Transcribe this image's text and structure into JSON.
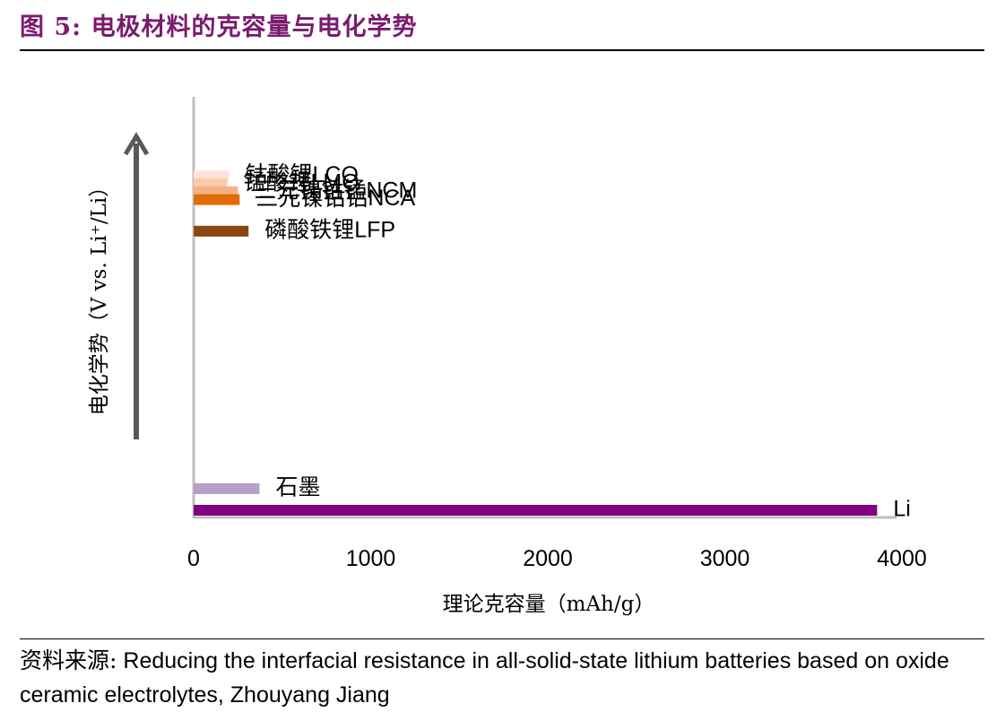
{
  "figure": {
    "title_prefix": "图 5:",
    "title": "电极材料的克容量与电化学势"
  },
  "source": {
    "label": "资料来源:",
    "text": "Reducing the interfacial resistance in all-solid-state lithium batteries based on oxide ceramic electrolytes, Zhouyang Jiang"
  },
  "chart_data": {
    "type": "bar",
    "orientation": "horizontal",
    "xlabel": "理论克容量（mAh/g）",
    "ylabel": "电化学势（V vs. Li⁺/Li）",
    "ylabel_arrow": "up",
    "xlim": [
      0,
      4000
    ],
    "xticks": [
      0,
      1000,
      2000,
      3000,
      4000
    ],
    "grid": false,
    "legend": "none",
    "series": [
      {
        "label": "钴酸锂LCO",
        "capacity": 200,
        "potential": 4.1,
        "color": "#fce4d8"
      },
      {
        "label": "锰酸锂LMO",
        "capacity": 190,
        "potential": 4.0,
        "color": "#f9cba8"
      },
      {
        "label": "三元镍钴锰NCM",
        "capacity": 250,
        "potential": 3.9,
        "color": "#f4b183"
      },
      {
        "label": "三元镍钴铝NCA",
        "capacity": 260,
        "potential": 3.8,
        "color": "#e36c0a"
      },
      {
        "label": "磷酸铁锂LFP",
        "capacity": 310,
        "potential": 3.4,
        "color": "#8b4513"
      },
      {
        "label": "石墨",
        "capacity": 372,
        "potential": 0.1,
        "color": "#b4a0c8"
      },
      {
        "label": "Li",
        "capacity": 3860,
        "potential": 0.0,
        "color": "#800080"
      }
    ]
  }
}
